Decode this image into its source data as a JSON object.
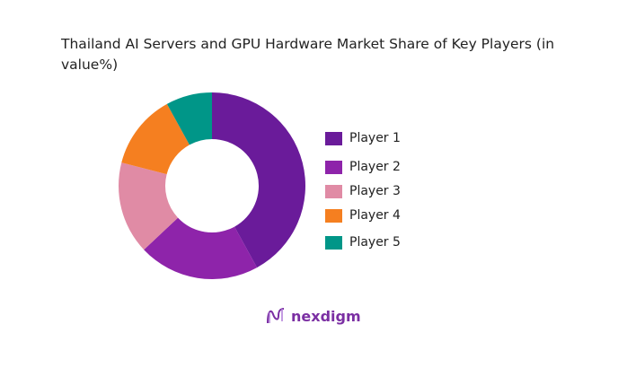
{
  "chart_data": {
    "type": "pie",
    "variant": "donut",
    "title": "Thailand AI Servers and GPU Hardware Market Share of Key Players (in value%)",
    "categories": [
      "Player 1",
      "Player 2",
      "Player 3",
      "Player 4",
      "Player 5"
    ],
    "values": [
      42,
      21,
      16,
      13,
      8
    ],
    "colors": [
      "#6a1b9a",
      "#8e24aa",
      "#e08ba5",
      "#f57f20",
      "#009688"
    ],
    "legend_position": "right"
  },
  "brand": {
    "name": "nexdigm"
  }
}
